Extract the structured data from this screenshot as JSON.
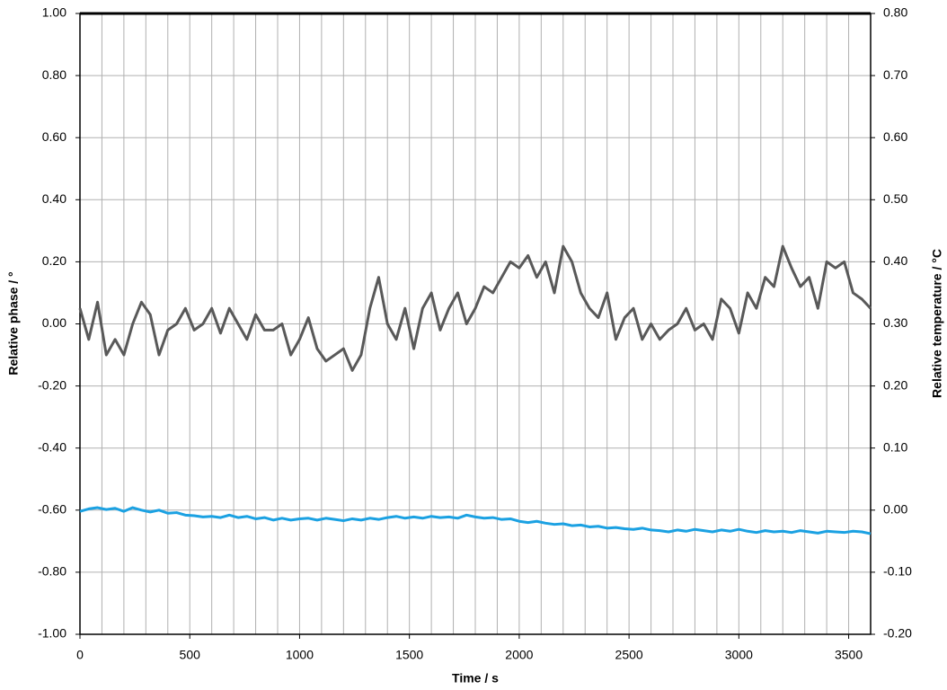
{
  "chart_data": {
    "type": "line",
    "xlabel": "Time / s",
    "ylabel": "Relative phase / °",
    "y2label": "Relative temperature / °C",
    "x": [
      0,
      40,
      80,
      120,
      160,
      200,
      240,
      280,
      320,
      360,
      400,
      440,
      480,
      520,
      560,
      600,
      640,
      680,
      720,
      760,
      800,
      840,
      880,
      920,
      960,
      1000,
      1040,
      1080,
      1120,
      1160,
      1200,
      1240,
      1280,
      1320,
      1360,
      1400,
      1440,
      1480,
      1520,
      1560,
      1600,
      1640,
      1680,
      1720,
      1760,
      1800,
      1840,
      1880,
      1920,
      1960,
      2000,
      2040,
      2080,
      2120,
      2160,
      2200,
      2240,
      2280,
      2320,
      2360,
      2400,
      2440,
      2480,
      2520,
      2560,
      2600,
      2640,
      2680,
      2720,
      2760,
      2800,
      2840,
      2880,
      2920,
      2960,
      3000,
      3040,
      3080,
      3120,
      3160,
      3200,
      3240,
      3280,
      3320,
      3360,
      3400,
      3440,
      3480,
      3520,
      3560,
      3600
    ],
    "series": [
      {
        "name": "Relative phase",
        "color": "#595959",
        "axis": "y",
        "values": [
          0.05,
          -0.05,
          0.07,
          -0.1,
          -0.05,
          -0.1,
          0.0,
          0.07,
          0.03,
          -0.1,
          -0.02,
          0.0,
          0.05,
          -0.02,
          0.0,
          0.05,
          -0.03,
          0.05,
          0.0,
          -0.05,
          0.03,
          -0.02,
          -0.02,
          0.0,
          -0.1,
          -0.05,
          0.02,
          -0.08,
          -0.12,
          -0.1,
          -0.08,
          -0.15,
          -0.1,
          0.05,
          0.15,
          0.0,
          -0.05,
          0.05,
          -0.08,
          0.05,
          0.1,
          -0.02,
          0.05,
          0.1,
          0.0,
          0.05,
          0.12,
          0.1,
          0.15,
          0.2,
          0.18,
          0.22,
          0.15,
          0.2,
          0.1,
          0.25,
          0.2,
          0.1,
          0.05,
          0.02,
          0.1,
          -0.05,
          0.02,
          0.05,
          -0.05,
          0.0,
          -0.05,
          -0.02,
          0.0,
          0.05,
          -0.02,
          0.0,
          -0.05,
          0.08,
          0.05,
          -0.03,
          0.1,
          0.05,
          0.15,
          0.12,
          0.25,
          0.18,
          0.12,
          0.15,
          0.05,
          0.2,
          0.18,
          0.2,
          0.1,
          0.08,
          0.05
        ]
      },
      {
        "name": "Relative temperature",
        "color": "#1ba1e2",
        "axis": "y2",
        "values": [
          -0.002,
          0.002,
          0.004,
          0.001,
          0.003,
          -0.002,
          0.004,
          0.0,
          -0.003,
          0.0,
          -0.005,
          -0.004,
          -0.008,
          -0.009,
          -0.011,
          -0.01,
          -0.012,
          -0.008,
          -0.012,
          -0.01,
          -0.014,
          -0.012,
          -0.016,
          -0.013,
          -0.016,
          -0.014,
          -0.013,
          -0.016,
          -0.013,
          -0.015,
          -0.017,
          -0.014,
          -0.016,
          -0.013,
          -0.015,
          -0.012,
          -0.01,
          -0.013,
          -0.011,
          -0.013,
          -0.01,
          -0.012,
          -0.011,
          -0.013,
          -0.008,
          -0.011,
          -0.013,
          -0.012,
          -0.015,
          -0.014,
          -0.018,
          -0.02,
          -0.018,
          -0.021,
          -0.023,
          -0.022,
          -0.025,
          -0.024,
          -0.027,
          -0.026,
          -0.029,
          -0.028,
          -0.03,
          -0.031,
          -0.029,
          -0.032,
          -0.033,
          -0.035,
          -0.032,
          -0.034,
          -0.031,
          -0.033,
          -0.035,
          -0.032,
          -0.034,
          -0.031,
          -0.034,
          -0.036,
          -0.033,
          -0.035,
          -0.034,
          -0.036,
          -0.033,
          -0.035,
          -0.037,
          -0.034,
          -0.035,
          -0.036,
          -0.034,
          -0.035,
          -0.038
        ]
      }
    ],
    "xlim": [
      0,
      3600
    ],
    "xticks": [
      0,
      500,
      1000,
      1500,
      2000,
      2500,
      3000,
      3500
    ],
    "x_grid_step": 100,
    "ylim": [
      -1,
      1
    ],
    "yticks": [
      {
        "value": -1,
        "label": "-1.00"
      },
      {
        "value": -0.8,
        "label": "-0.80"
      },
      {
        "value": -0.6,
        "label": "-0.60"
      },
      {
        "value": -0.4,
        "label": "-0.40"
      },
      {
        "value": -0.2,
        "label": "-0.20"
      },
      {
        "value": 0,
        "label": "0.00"
      },
      {
        "value": 0.2,
        "label": "0.20"
      },
      {
        "value": 0.4,
        "label": "0.40"
      },
      {
        "value": 0.6,
        "label": "0.60"
      },
      {
        "value": 0.8,
        "label": "0.80"
      },
      {
        "value": 1,
        "label": "1.00"
      }
    ],
    "y2lim": [
      -0.2,
      0.8
    ],
    "y2ticks": [
      {
        "value": -0.2,
        "label": "-0.20"
      },
      {
        "value": -0.1,
        "label": "-0.10"
      },
      {
        "value": 0,
        "label": "0.00"
      },
      {
        "value": 0.1,
        "label": "0.10"
      },
      {
        "value": 0.2,
        "label": "0.20"
      },
      {
        "value": 0.3,
        "label": "0.30"
      },
      {
        "value": 0.4,
        "label": "0.40"
      },
      {
        "value": 0.5,
        "label": "0.50"
      },
      {
        "value": 0.6,
        "label": "0.60"
      },
      {
        "value": 0.7,
        "label": "0.70"
      },
      {
        "value": 0.8,
        "label": "0.80"
      }
    ],
    "grid": true
  }
}
